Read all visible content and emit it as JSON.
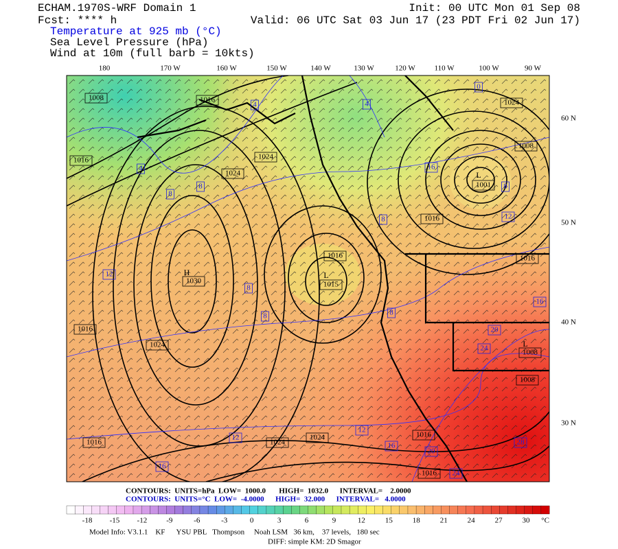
{
  "header": {
    "title": "ECHAM.1970S-WRF Domain 1",
    "forecast": "Fcst: **** h",
    "init": "Init: 00 UTC Mon 01 Sep 08",
    "valid": "Valid: 06 UTC Sat 03 Jun 17 (23 PDT Fri 02 Jun 17)",
    "fields": [
      "Temperature at 925 mb (°C)",
      "Sea Level Pressure (hPa)",
      "Wind at 10m (full barb = 10kts)"
    ]
  },
  "map": {
    "longitude_labels": [
      "180",
      "170 W",
      "160 W",
      "150 W",
      "140 W",
      "130 W",
      "120 W",
      "110 W",
      "100 W",
      "90 W"
    ],
    "latitude_labels": [
      "60 N",
      "50 N",
      "40 N",
      "30 N"
    ],
    "centers": [
      "H",
      "L",
      "L",
      "L"
    ],
    "pressure_labels": [
      "1008",
      "1016",
      "1016",
      "1024",
      "1024",
      "1024",
      "1008",
      "1001",
      "1016",
      "1016",
      "1015",
      "1030",
      "1016",
      "1024",
      "1016",
      "1024",
      "1024",
      "1016",
      "1016",
      "1008",
      "1008",
      "1016"
    ],
    "temperature_labels": [
      "0",
      "4",
      "4",
      "4",
      "8",
      "8",
      "16",
      "8",
      "12",
      "8",
      "12",
      "8",
      "8",
      "8",
      "16",
      "20",
      "24",
      "12",
      "12",
      "16",
      "20",
      "24",
      "28",
      "16"
    ]
  },
  "footer": {
    "contours": [
      "CONTOURS:  UNITS=hPa  LOW=  1000.0       HIGH=  1032.0      INTERVAL=    2.0000",
      "CONTOURS:  UNITS=°C  LOW=  -4.0000      HIGH=  32.000      INTERVAL=   4.0000"
    ],
    "model_info": [
      "Model Info: V3.1.1    KF      YSU PBL   Thompson     Noah LSM   36 km,    37 levels,   180 sec",
      "DIFF: simple KM: 2D Smagor"
    ]
  },
  "colorbar": {
    "ticks": [
      -18,
      -15,
      -12,
      -9,
      -6,
      -3,
      0,
      3,
      6,
      9,
      12,
      15,
      18,
      21,
      24,
      27,
      30
    ],
    "unit": "°C"
  }
}
